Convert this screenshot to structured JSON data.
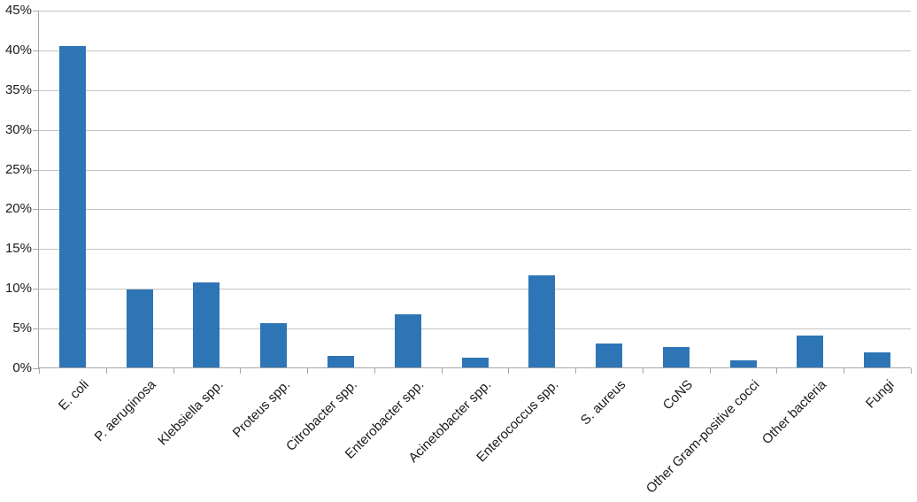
{
  "chart_data": {
    "type": "bar",
    "title": "",
    "xlabel": "",
    "ylabel": "",
    "categories": [
      "E. coli",
      "P. aeruginosa",
      "Klebsiella spp.",
      "Proteus spp.",
      "Citrobacter spp.",
      "Enterobacter spp.",
      "Acinetobacter spp.",
      "Enterococcus spp.",
      "S. aureus",
      "CoNS",
      "Other Gram-positive cocci",
      "Other bacteria",
      "Fungi"
    ],
    "values": [
      40.4,
      9.8,
      10.7,
      5.6,
      1.4,
      6.7,
      1.2,
      11.6,
      3.0,
      2.6,
      0.9,
      4.0,
      1.9
    ],
    "ylim": [
      0,
      45
    ],
    "ytick_step": 5,
    "ytick_labels": [
      "0%",
      "5%",
      "10%",
      "15%",
      "20%",
      "25%",
      "30%",
      "35%",
      "40%",
      "45%"
    ],
    "grid": true,
    "legend": "none",
    "bar_color": "#2e75b6",
    "gridline_color": "#c4c4c4",
    "axis_color": "#a6a6a6",
    "text_color": "#1a1a1a"
  }
}
